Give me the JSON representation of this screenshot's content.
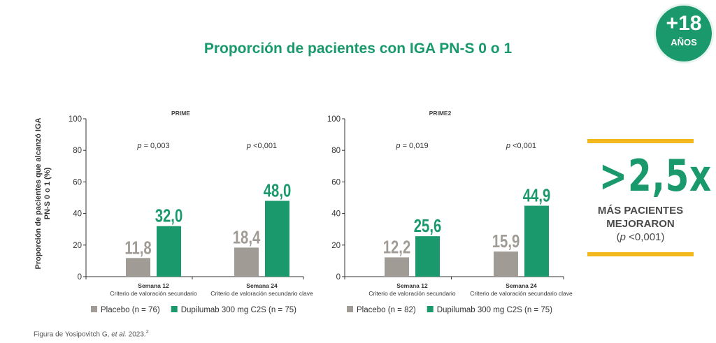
{
  "title": "Proporción de pacientes con IGA PN-S 0 o 1",
  "badge": {
    "main": "+18",
    "sub": "AÑOS"
  },
  "colors": {
    "placebo": "#a09b95",
    "dupilumab": "#1a9a6c",
    "accent": "#f2b81e",
    "title": "#1a9a6c"
  },
  "chart_data": [
    {
      "type": "bar",
      "title": "PRIME",
      "ylabel": "Proporción de pacientes que alcanzó IGA PN-S 0 o 1 (%)",
      "ylim": [
        0,
        100
      ],
      "yticks": [
        "0",
        "20",
        "40",
        "60",
        "80",
        "100"
      ],
      "categories": [
        [
          "Semana 12",
          "Criterio de valoración secundario"
        ],
        [
          "Semana 24",
          "Criterio de valoración secundario clave"
        ]
      ],
      "pvalues": [
        [
          "p",
          " = 0,003"
        ],
        [
          "p",
          " <0,001"
        ]
      ],
      "series": [
        {
          "name": "Placebo (n = 76)",
          "values": [
            11.8,
            18.4
          ],
          "labels": [
            "11,8",
            "18,4"
          ]
        },
        {
          "name": "Dupilumab 300 mg C2S (n = 75)",
          "values": [
            32.0,
            48.0
          ],
          "labels": [
            "32,0",
            "48,0"
          ]
        }
      ],
      "legend": "bottom"
    },
    {
      "type": "bar",
      "title": "PRIME2",
      "ylim": [
        0,
        100
      ],
      "yticks": [
        "0",
        "20",
        "40",
        "60",
        "80",
        "100"
      ],
      "categories": [
        [
          "Semana 12",
          "Criterio de valoración secundario"
        ],
        [
          "Semana 24",
          "Criterio de valoración secundario clave"
        ]
      ],
      "pvalues": [
        [
          "p",
          " = 0,019"
        ],
        [
          "p",
          " <0,001"
        ]
      ],
      "series": [
        {
          "name": "Placebo (n = 82)",
          "values": [
            12.2,
            15.9
          ],
          "labels": [
            "12,2",
            "15,9"
          ]
        },
        {
          "name": "Dupilumab 300 mg C2S (n = 75)",
          "values": [
            25.6,
            44.9
          ],
          "labels": [
            "25,6",
            "44,9"
          ]
        }
      ],
      "legend": "bottom"
    }
  ],
  "callout": {
    "value": ">2,5x",
    "line1": "MÁS PACIENTES",
    "line2": "MEJORARON",
    "p_open": "(",
    "p_italic": "p",
    "p_rest": " <0,001)"
  },
  "footer": {
    "text": "Figura de Yosipovitch G, ",
    "italic": "et al.",
    "year": " 2023.",
    "ref": "2"
  }
}
